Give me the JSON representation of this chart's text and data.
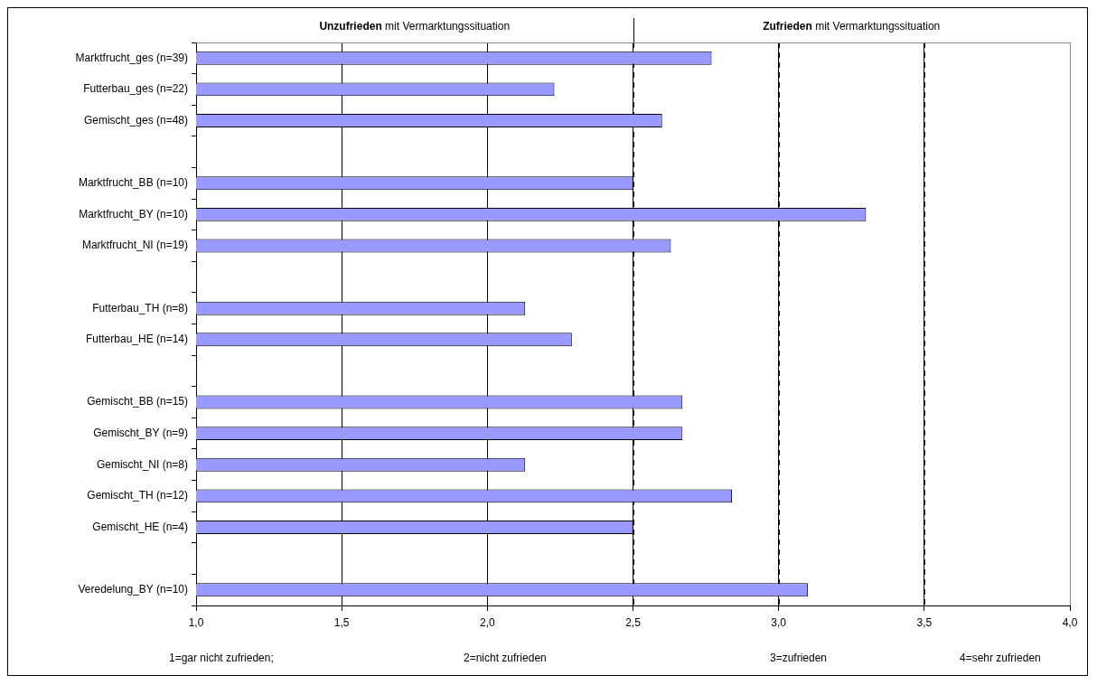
{
  "chart_data": {
    "type": "bar",
    "orientation": "horizontal",
    "categories": [
      "Marktfrucht_ges (n=39)",
      "Futterbau_ges (n=22)",
      "Gemischt_ges (n=48)",
      null,
      "Marktfrucht_BB (n=10)",
      "Marktfrucht_BY (n=10)",
      "Marktfrucht_NI (n=19)",
      null,
      "Futterbau_TH (n=8)",
      "Futterbau_HE (n=14)",
      null,
      "Gemischt_BB (n=15)",
      "Gemischt_BY (n=9)",
      "Gemischt_NI (n=8)",
      "Gemischt_TH (n=12)",
      "Gemischt_HE (n=4)",
      null,
      "Veredelung_BY (n=10)"
    ],
    "values": [
      2.77,
      2.23,
      2.6,
      null,
      2.5,
      3.3,
      2.63,
      null,
      2.13,
      2.29,
      null,
      2.67,
      2.67,
      2.13,
      2.84,
      2.5,
      null,
      3.1
    ],
    "color": "#9999ff",
    "xlim": [
      1,
      4
    ],
    "xticks": [
      {
        "value": 1,
        "label": "1,0"
      },
      {
        "value": 1.5,
        "label": "1,5"
      },
      {
        "value": 2,
        "label": "2,0"
      },
      {
        "value": 2.5,
        "label": "2,5"
      },
      {
        "value": 3,
        "label": "3,0"
      },
      {
        "value": 3.5,
        "label": "3,5"
      },
      {
        "value": 4,
        "label": "4,0"
      }
    ],
    "grid": "x",
    "annotations": [
      "Unzufrieden mit Vermarktungssituation",
      "Zufrieden mit Vermarktungssituation",
      "1=gar nicht zufrieden;",
      "2=nicht zufrieden",
      "3=zufrieden",
      "4=sehr zufrieden"
    ]
  }
}
